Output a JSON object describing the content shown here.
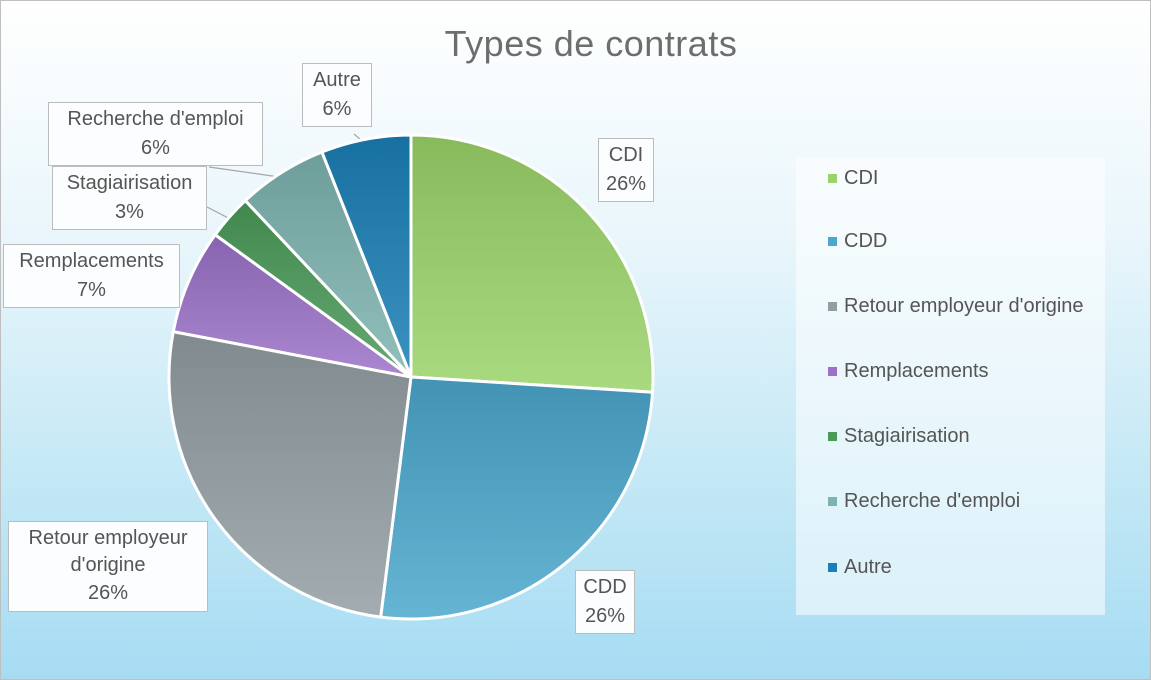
{
  "chart_data": {
    "type": "pie",
    "title": "Types de contrats",
    "slices": [
      {
        "label": "CDI",
        "value": 26,
        "value_label": "26%",
        "color": "#9ad36a"
      },
      {
        "label": "CDD",
        "value": 26,
        "value_label": "26%",
        "color": "#4ba7cc"
      },
      {
        "label": "Retour employeur d'origine",
        "value": 26,
        "value_label": "26%",
        "color": "#939ea3"
      },
      {
        "label": "Remplacements",
        "value": 7,
        "value_label": "7%",
        "color": "#9b72c8"
      },
      {
        "label": "Stagiairisation",
        "value": 3,
        "value_label": "3%",
        "color": "#4a9a59"
      },
      {
        "label": "Recherche d'emploi",
        "value": 6,
        "value_label": "6%",
        "color": "#7db4b0"
      },
      {
        "label": "Autre",
        "value": 6,
        "value_label": "6%",
        "color": "#1a7fb6"
      }
    ],
    "start": "12 o'clock",
    "direction": "clockwise",
    "legend": {
      "position": "right",
      "show": true
    },
    "data_labels": "callouts with category name and percentage"
  }
}
